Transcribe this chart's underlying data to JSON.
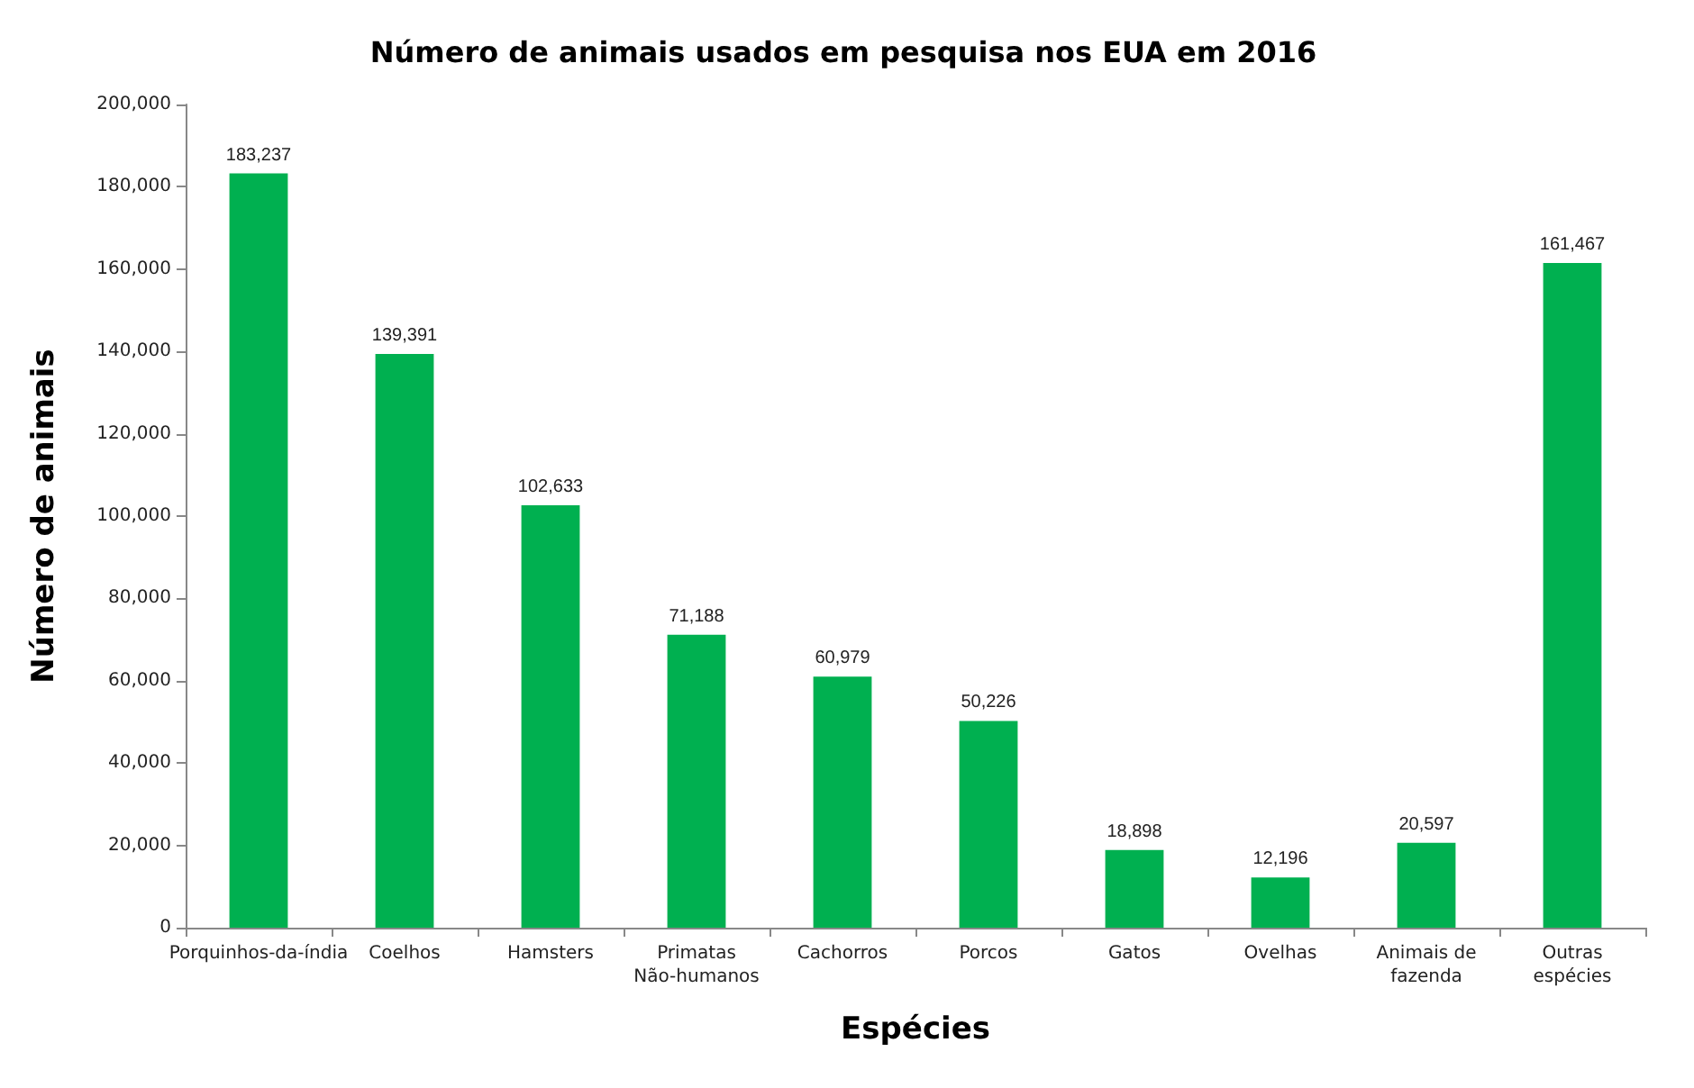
{
  "chart_data": {
    "type": "bar",
    "title": "Número de animais usados em pesquisa nos EUA em 2016",
    "xlabel": "Espécies",
    "ylabel": "Número de animais",
    "categories": [
      "Porquinhos-da-índia",
      "Coelhos",
      "Hamsters",
      "Primatas\nNão-humanos",
      "Cachorros",
      "Porcos",
      "Gatos",
      "Ovelhas",
      "Animais de\nfazenda",
      "Outras\nespécies"
    ],
    "values": [
      183237,
      139391,
      102633,
      71188,
      60979,
      50226,
      18898,
      12196,
      20597,
      161467
    ],
    "value_labels": [
      "183,237",
      "139,391",
      "102,633",
      "71,188",
      "60,979",
      "50,226",
      "18,898",
      "12,196",
      "20,597",
      "161,467"
    ],
    "color": "#00b050",
    "ylim": [
      0,
      200000
    ],
    "yticks": [
      0,
      {
        "value": 20000,
        "label": "20,000"
      },
      {
        "value": 40000,
        "label": "40,000"
      },
      {
        "value": 60000,
        "label": "60,000"
      },
      {
        "value": 80000,
        "label": "80,000"
      },
      {
        "value": 100000,
        "label": "100,000"
      },
      {
        "value": 120000,
        "label": "120,000"
      },
      {
        "value": 140000,
        "label": "140,000"
      },
      {
        "value": 160000,
        "label": "160,000"
      },
      {
        "value": 180000,
        "label": "180,000"
      },
      {
        "value": 200000,
        "label": "200,000"
      }
    ],
    "grid": false
  }
}
